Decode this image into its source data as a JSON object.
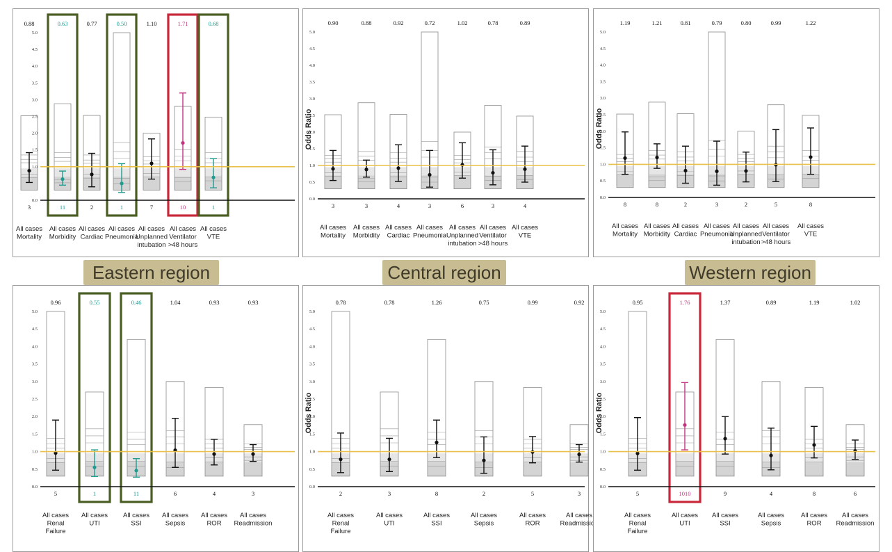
{
  "colors": {
    "baseline": "#e8c04a",
    "point": "#111111",
    "significant_low": "#1f9b8f",
    "significant_high": "#c2337f",
    "highlight_low_box": "#4a5e23",
    "highlight_high_box": "#c8283a",
    "banner_bg": "#c8bd92"
  },
  "regions": {
    "eastern": "Eastern region",
    "central": "Central region",
    "western": "Western region"
  },
  "chart_data": [
    {
      "type": "funnel-forest",
      "region": "eastern",
      "row": "top",
      "ylabel": "",
      "ylim": [
        0,
        5
      ],
      "yticks": [
        "0.0",
        "0.5",
        "1.0",
        "1.5",
        "2.0",
        "2.5",
        "3.0",
        "3.5",
        "4.0",
        "4.5",
        "5.0"
      ],
      "categories": [
        {
          "label": [
            "All cases",
            "Mortality"
          ],
          "or": 0.88,
          "or_label": "0.88",
          "ci": [
            0.53,
            1.42
          ],
          "n": "3",
          "box": 2.52,
          "lines": [
            1.35,
            1.22,
            1.12,
            0.78,
            0.68
          ],
          "flag": ""
        },
        {
          "label": [
            "All cases",
            "Morbidity"
          ],
          "or": 0.63,
          "or_label": "0.63",
          "ci": [
            0.45,
            0.87
          ],
          "n": "11",
          "box": 2.88,
          "lines": [
            1.42,
            1.28,
            1.16,
            0.62,
            0.52
          ],
          "flag": "low"
        },
        {
          "label": [
            "All cases",
            "Cardiac"
          ],
          "or": 0.77,
          "or_label": "0.77",
          "ci": [
            0.4,
            1.4
          ],
          "n": "2",
          "box": 2.53,
          "lines": [
            1.35,
            1.2,
            1.1,
            0.78,
            0.66
          ],
          "flag": ""
        },
        {
          "label": [
            "All cases",
            "Pneumonia"
          ],
          "or": 0.5,
          "or_label": "0.50",
          "ci": [
            0.23,
            1.09
          ],
          "n": "1",
          "box": 5.0,
          "lines": [
            1.72,
            1.45,
            1.25,
            0.65,
            0.5
          ],
          "flag": "low"
        },
        {
          "label": [
            "All cases",
            "Unplanned",
            "intubation"
          ],
          "or": 1.1,
          "or_label": "1.10",
          "ci": [
            0.63,
            1.83
          ],
          "n": "7",
          "box": 2.0,
          "lines": [
            1.3,
            1.18,
            1.08,
            0.8,
            0.7
          ],
          "flag": ""
        },
        {
          "label": [
            "All cases",
            "Ventilator",
            ">48 hours"
          ],
          "or": 1.71,
          "or_label": "1.71",
          "ci": [
            0.92,
            3.2
          ],
          "n": "10",
          "box": 2.8,
          "lines": [
            1.5,
            1.32,
            1.18,
            0.68,
            0.55
          ],
          "flag": "high"
        },
        {
          "label": [
            "All cases",
            "VTE"
          ],
          "or": 0.68,
          "or_label": "0.68",
          "ci": [
            0.37,
            1.24
          ],
          "n": "1",
          "box": 2.48,
          "lines": [
            1.42,
            1.25,
            1.12,
            0.7,
            0.58
          ],
          "flag": "low"
        }
      ]
    },
    {
      "type": "funnel-forest",
      "region": "central",
      "row": "top",
      "ylabel": "Odds Ratio",
      "ylim": [
        0,
        5
      ],
      "yticks": [
        "0.0",
        "0.5",
        "1.0",
        "1.5",
        "2.0",
        "2.5",
        "3.0",
        "3.5",
        "4.0",
        "4.5",
        "5.0"
      ],
      "categories": [
        {
          "label": [
            "All cases",
            "Mortality"
          ],
          "or": 0.9,
          "or_label": "0.90",
          "ci": [
            0.55,
            1.45
          ],
          "n": "3",
          "box": 2.52,
          "lines": [
            1.3,
            1.2,
            1.1,
            0.78,
            0.68
          ],
          "flag": ""
        },
        {
          "label": [
            "All cases",
            "Morbidity"
          ],
          "or": 0.88,
          "or_label": "0.88",
          "ci": [
            0.65,
            1.16
          ],
          "n": "3",
          "box": 2.88,
          "lines": [
            1.42,
            1.28,
            1.16,
            0.62,
            0.52
          ],
          "flag": ""
        },
        {
          "label": [
            "All cases",
            "Cardiac"
          ],
          "or": 0.92,
          "or_label": "0.92",
          "ci": [
            0.52,
            1.62
          ],
          "n": "4",
          "box": 2.53,
          "lines": [
            1.38,
            1.22,
            1.1,
            0.78,
            0.66
          ],
          "flag": ""
        },
        {
          "label": [
            "All cases",
            "Pneumonia"
          ],
          "or": 0.72,
          "or_label": "0.72",
          "ci": [
            0.35,
            1.45
          ],
          "n": "3",
          "box": 5.0,
          "lines": [
            1.72,
            1.45,
            1.25,
            0.65,
            0.5
          ],
          "flag": ""
        },
        {
          "label": [
            "All cases",
            "Unplanned",
            "intubation"
          ],
          "or": 1.02,
          "or_label": "1.02",
          "ci": [
            0.62,
            1.68
          ],
          "n": "6",
          "box": 2.0,
          "lines": [
            1.3,
            1.18,
            1.08,
            0.8,
            0.7
          ],
          "flag": ""
        },
        {
          "label": [
            "All cases",
            "Ventilator",
            ">48 hours"
          ],
          "or": 0.78,
          "or_label": "0.78",
          "ci": [
            0.42,
            1.47
          ],
          "n": "3",
          "box": 2.8,
          "lines": [
            1.55,
            1.38,
            1.2,
            0.68,
            0.55
          ],
          "flag": ""
        },
        {
          "label": [
            "All cases",
            "VTE"
          ],
          "or": 0.89,
          "or_label": "0.89",
          "ci": [
            0.5,
            1.58
          ],
          "n": "4",
          "box": 2.48,
          "lines": [
            1.42,
            1.25,
            1.12,
            0.7,
            0.58
          ],
          "flag": ""
        }
      ]
    },
    {
      "type": "funnel-forest",
      "region": "western",
      "row": "top",
      "ylabel": "Odds Ratio",
      "ylim": [
        0,
        5
      ],
      "yticks": [
        "0.0",
        "0.5",
        "1.0",
        "1.5",
        "2.0",
        "2.5",
        "3.0",
        "3.5",
        "4.0",
        "4.5",
        "5.0"
      ],
      "categories": [
        {
          "label": [
            "All cases",
            "Mortality"
          ],
          "or": 1.19,
          "or_label": "1.19",
          "ci": [
            0.7,
            1.98
          ],
          "n": "8",
          "box": 2.52,
          "lines": [
            1.3,
            1.18,
            1.08,
            0.78,
            0.68
          ],
          "flag": ""
        },
        {
          "label": [
            "All cases",
            "Morbidity"
          ],
          "or": 1.21,
          "or_label": "1.21",
          "ci": [
            0.88,
            1.62
          ],
          "n": "8",
          "box": 2.88,
          "lines": [
            1.42,
            1.28,
            1.16,
            0.62,
            0.52
          ],
          "flag": ""
        },
        {
          "label": [
            "All cases",
            "Cardiac"
          ],
          "or": 0.81,
          "or_label": "0.81",
          "ci": [
            0.43,
            1.55
          ],
          "n": "2",
          "box": 2.53,
          "lines": [
            1.38,
            1.22,
            1.1,
            0.78,
            0.66
          ],
          "flag": ""
        },
        {
          "label": [
            "All cases",
            "Pneumonia"
          ],
          "or": 0.79,
          "or_label": "0.79",
          "ci": [
            0.37,
            1.7
          ],
          "n": "3",
          "box": 5.0,
          "lines": [
            1.72,
            1.45,
            1.25,
            0.65,
            0.5
          ],
          "flag": ""
        },
        {
          "label": [
            "All cases",
            "Unplanned",
            "intubation"
          ],
          "or": 0.8,
          "or_label": "0.80",
          "ci": [
            0.47,
            1.37
          ],
          "n": "2",
          "box": 2.0,
          "lines": [
            1.3,
            1.18,
            1.08,
            0.8,
            0.7
          ],
          "flag": ""
        },
        {
          "label": [
            "All cases",
            "Ventilator",
            ">48 hours"
          ],
          "or": 0.99,
          "or_label": "0.99",
          "ci": [
            0.48,
            2.05
          ],
          "n": "5",
          "box": 2.8,
          "lines": [
            1.55,
            1.38,
            1.2,
            0.68,
            0.55
          ],
          "flag": ""
        },
        {
          "label": [
            "All cases",
            "VTE"
          ],
          "or": 1.22,
          "or_label": "1.22",
          "ci": [
            0.7,
            2.1
          ],
          "n": "8",
          "box": 2.48,
          "lines": [
            1.42,
            1.25,
            1.12,
            0.7,
            0.58
          ],
          "flag": ""
        }
      ]
    },
    {
      "type": "funnel-forest",
      "region": "eastern",
      "row": "bottom",
      "ylabel": "",
      "ylim": [
        0,
        5
      ],
      "yticks": [
        "0.0",
        "0.5",
        "1.0",
        "1.5",
        "2.0",
        "2.5",
        "3.0",
        "3.5",
        "4.0",
        "4.5",
        "5.0"
      ],
      "categories": [
        {
          "label": [
            "All cases",
            "Renal",
            "Failure"
          ],
          "or": 0.96,
          "or_label": "0.96",
          "ci": [
            0.47,
            1.9
          ],
          "n": "5",
          "box": 5.0,
          "lines": [
            1.38,
            1.22,
            1.1,
            0.8,
            0.68
          ],
          "flag": ""
        },
        {
          "label": [
            "All cases",
            "UTI"
          ],
          "or": 0.55,
          "or_label": "0.55",
          "ci": [
            0.29,
            1.05
          ],
          "n": "1",
          "box": 2.7,
          "lines": [
            1.65,
            1.45,
            1.25,
            0.72,
            0.58
          ],
          "flag": "low"
        },
        {
          "label": [
            "All cases",
            "SSI"
          ],
          "or": 0.46,
          "or_label": "0.46",
          "ci": [
            0.27,
            0.8
          ],
          "n": "11",
          "box": 4.2,
          "lines": [
            1.55,
            1.35,
            1.2,
            0.72,
            0.58
          ],
          "flag": "low"
        },
        {
          "label": [
            "All cases",
            "Sepsis"
          ],
          "or": 1.04,
          "or_label": "1.04",
          "ci": [
            0.55,
            1.95
          ],
          "n": "6",
          "box": 3.0,
          "lines": [
            1.6,
            1.42,
            1.22,
            0.7,
            0.55
          ],
          "flag": ""
        },
        {
          "label": [
            "All cases",
            "ROR"
          ],
          "or": 0.93,
          "or_label": "0.93",
          "ci": [
            0.62,
            1.35
          ],
          "n": "4",
          "box": 2.83,
          "lines": [
            1.35,
            1.22,
            1.1,
            0.82,
            0.7
          ],
          "flag": ""
        },
        {
          "label": [
            "All cases",
            "Readmission"
          ],
          "or": 0.93,
          "or_label": "0.93",
          "ci": [
            0.72,
            1.2
          ],
          "n": "3",
          "box": 1.77,
          "lines": [
            1.22,
            1.12,
            1.06,
            0.85,
            0.75
          ],
          "flag": ""
        }
      ]
    },
    {
      "type": "funnel-forest",
      "region": "central",
      "row": "bottom",
      "ylabel": "Odds Ratio",
      "ylim": [
        0,
        5
      ],
      "yticks": [
        "0.0",
        "0.5",
        "1.0",
        "1.5",
        "2.0",
        "2.5",
        "3.0",
        "3.5",
        "4.0",
        "4.5",
        "5.0"
      ],
      "categories": [
        {
          "label": [
            "All cases",
            "Renal",
            "Failure"
          ],
          "or": 0.78,
          "or_label": "0.78",
          "ci": [
            0.4,
            1.53
          ],
          "n": "2",
          "box": 5.0,
          "lines": [
            1.38,
            1.22,
            1.1,
            0.8,
            0.68
          ],
          "flag": ""
        },
        {
          "label": [
            "All cases",
            "UTI"
          ],
          "or": 0.78,
          "or_label": "0.78",
          "ci": [
            0.43,
            1.38
          ],
          "n": "3",
          "box": 2.7,
          "lines": [
            1.65,
            1.45,
            1.25,
            0.72,
            0.58
          ],
          "flag": ""
        },
        {
          "label": [
            "All cases",
            "SSI"
          ],
          "or": 1.26,
          "or_label": "1.26",
          "ci": [
            0.83,
            1.9
          ],
          "n": "8",
          "box": 4.2,
          "lines": [
            1.55,
            1.35,
            1.2,
            0.72,
            0.58
          ],
          "flag": ""
        },
        {
          "label": [
            "All cases",
            "Sepsis"
          ],
          "or": 0.75,
          "or_label": "0.75",
          "ci": [
            0.38,
            1.42
          ],
          "n": "2",
          "box": 3.0,
          "lines": [
            1.6,
            1.42,
            1.22,
            0.7,
            0.55
          ],
          "flag": ""
        },
        {
          "label": [
            "All cases",
            "ROR"
          ],
          "or": 0.99,
          "or_label": "0.99",
          "ci": [
            0.68,
            1.43
          ],
          "n": "5",
          "box": 2.83,
          "lines": [
            1.35,
            1.22,
            1.1,
            0.82,
            0.7
          ],
          "flag": ""
        },
        {
          "label": [
            "All cases",
            "Readmission"
          ],
          "or": 0.92,
          "or_label": "0.92",
          "ci": [
            0.7,
            1.2
          ],
          "n": "3",
          "box": 1.77,
          "lines": [
            1.22,
            1.12,
            1.06,
            0.85,
            0.75
          ],
          "flag": ""
        }
      ]
    },
    {
      "type": "funnel-forest",
      "region": "western",
      "row": "bottom",
      "ylabel": "Odds Ratio",
      "ylim": [
        0,
        5
      ],
      "yticks": [
        "0.0",
        "0.5",
        "1.0",
        "1.5",
        "2.0",
        "2.5",
        "3.0",
        "3.5",
        "4.0",
        "4.5",
        "5.0"
      ],
      "categories": [
        {
          "label": [
            "All cases",
            "Renal",
            "Failure"
          ],
          "or": 0.95,
          "or_label": "0.95",
          "ci": [
            0.47,
            1.97
          ],
          "n": "5",
          "box": 5.0,
          "lines": [
            1.38,
            1.22,
            1.1,
            0.8,
            0.68
          ],
          "flag": ""
        },
        {
          "label": [
            "All cases",
            "UTI"
          ],
          "or": 1.76,
          "or_label": "1.76",
          "ci": [
            1.05,
            2.97
          ],
          "n": "1010",
          "box": 2.7,
          "lines": [
            1.65,
            1.45,
            1.25,
            0.72,
            0.58
          ],
          "flag": "high"
        },
        {
          "label": [
            "All cases",
            "SSI"
          ],
          "or": 1.37,
          "or_label": "1.37",
          "ci": [
            0.93,
            2.0
          ],
          "n": "9",
          "box": 4.2,
          "lines": [
            1.55,
            1.35,
            1.2,
            0.72,
            0.58
          ],
          "flag": ""
        },
        {
          "label": [
            "All cases",
            "Sepsis"
          ],
          "or": 0.89,
          "or_label": "0.89",
          "ci": [
            0.48,
            1.67
          ],
          "n": "4",
          "box": 3.0,
          "lines": [
            1.6,
            1.42,
            1.22,
            0.7,
            0.55
          ],
          "flag": ""
        },
        {
          "label": [
            "All cases",
            "ROR"
          ],
          "or": 1.19,
          "or_label": "1.19",
          "ci": [
            0.82,
            1.72
          ],
          "n": "8",
          "box": 2.83,
          "lines": [
            1.35,
            1.22,
            1.1,
            0.82,
            0.7
          ],
          "flag": ""
        },
        {
          "label": [
            "All cases",
            "Readmission"
          ],
          "or": 1.02,
          "or_label": "1.02",
          "ci": [
            0.78,
            1.33
          ],
          "n": "6",
          "box": 1.77,
          "lines": [
            1.22,
            1.12,
            1.06,
            0.85,
            0.75
          ],
          "flag": ""
        }
      ]
    }
  ]
}
